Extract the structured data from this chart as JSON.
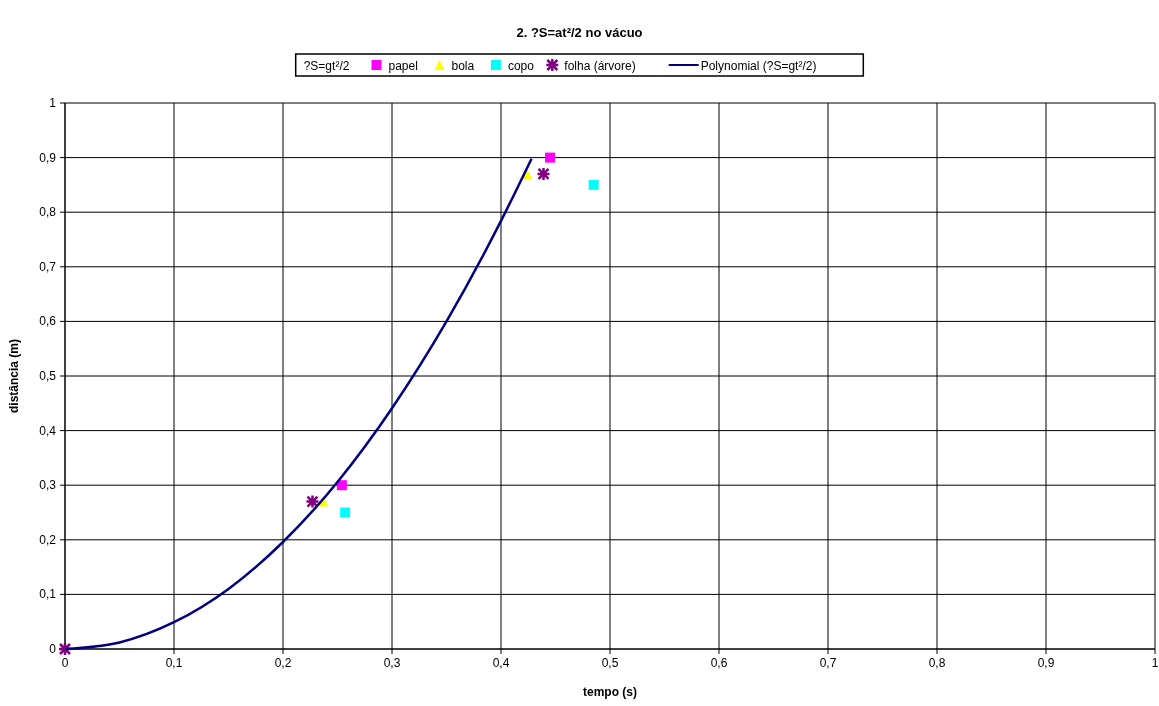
{
  "chart_data": {
    "type": "scatter",
    "title": "2. ?S=at²/2 no vácuo",
    "xlabel": "tempo (s)",
    "ylabel": "distância (m)",
    "xlim": [
      0,
      1
    ],
    "ylim": [
      0,
      1
    ],
    "xticks": [
      {
        "value": 0,
        "label": "0"
      },
      {
        "value": 0.1,
        "label": "0,1"
      },
      {
        "value": 0.2,
        "label": "0,2"
      },
      {
        "value": 0.3,
        "label": "0,3"
      },
      {
        "value": 0.4,
        "label": "0,4"
      },
      {
        "value": 0.5,
        "label": "0,5"
      },
      {
        "value": 0.6,
        "label": "0,6"
      },
      {
        "value": 0.7,
        "label": "0,7"
      },
      {
        "value": 0.8,
        "label": "0,8"
      },
      {
        "value": 0.9,
        "label": "0,9"
      },
      {
        "value": 1,
        "label": "1"
      }
    ],
    "yticks": [
      {
        "value": 0,
        "label": "0"
      },
      {
        "value": 0.1,
        "label": "0,1"
      },
      {
        "value": 0.2,
        "label": "0,2"
      },
      {
        "value": 0.3,
        "label": "0,3"
      },
      {
        "value": 0.4,
        "label": "0,4"
      },
      {
        "value": 0.5,
        "label": "0,5"
      },
      {
        "value": 0.6,
        "label": "0,6"
      },
      {
        "value": 0.7,
        "label": "0,7"
      },
      {
        "value": 0.8,
        "label": "0,8"
      },
      {
        "value": 0.9,
        "label": "0,9"
      },
      {
        "value": 1,
        "label": "1"
      }
    ],
    "grid": true,
    "legend": "top",
    "annotations": [
      "?S=gt²/2"
    ],
    "series": [
      {
        "name": "papel",
        "color": "#ff00ff",
        "marker": "square",
        "x": [
          0.254,
          0.445
        ],
        "values": [
          0.3,
          0.9
        ]
      },
      {
        "name": "bola",
        "color": "#ffff00",
        "marker": "triangle",
        "x": [
          0.237,
          0.424
        ],
        "values": [
          0.27,
          0.87
        ]
      },
      {
        "name": "copo",
        "color": "#00ffff",
        "marker": "square",
        "x": [
          0.257,
          0.485
        ],
        "values": [
          0.25,
          0.85
        ]
      },
      {
        "name": "folha (árvore)",
        "color": "#800080",
        "marker": "cross",
        "x": [
          0,
          0.227,
          0.439
        ],
        "values": [
          0,
          0.27,
          0.87
        ]
      },
      {
        "name": "Polynomial (?S=gt²/2)",
        "type": "line",
        "color": "#000080",
        "line_style": "solid",
        "x": [
          0,
          0.05,
          0.1,
          0.15,
          0.2,
          0.25,
          0.3,
          0.35,
          0.4,
          0.428
        ],
        "values": [
          0,
          0.012,
          0.049,
          0.11,
          0.196,
          0.306,
          0.441,
          0.6,
          0.784,
          0.898
        ]
      }
    ]
  }
}
